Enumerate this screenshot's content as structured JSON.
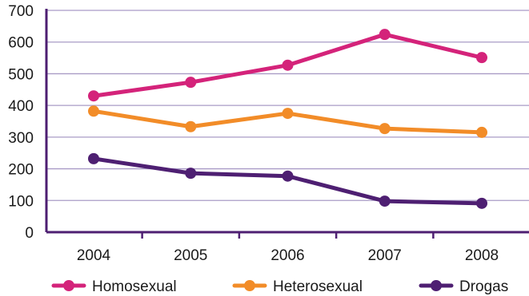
{
  "chart_data": {
    "type": "line",
    "categories": [
      "2004",
      "2005",
      "2006",
      "2007",
      "2008"
    ],
    "series": [
      {
        "name": "Homosexual",
        "values": [
          430,
          473,
          527,
          624,
          551
        ],
        "color": "#d4237a"
      },
      {
        "name": "Heterosexual",
        "values": [
          382,
          333,
          375,
          327,
          315
        ],
        "color": "#f28c28"
      },
      {
        "name": "Drogas",
        "values": [
          232,
          186,
          177,
          98,
          91
        ],
        "color": "#4e1f72"
      }
    ],
    "ylim": [
      0,
      700
    ],
    "yticks": [
      "0",
      "100",
      "200",
      "300",
      "400",
      "500",
      "600",
      "700"
    ],
    "grid": true,
    "gridline_color": "#a99bc6",
    "axis_color": "#4e1f72",
    "legend_position": "bottom"
  }
}
